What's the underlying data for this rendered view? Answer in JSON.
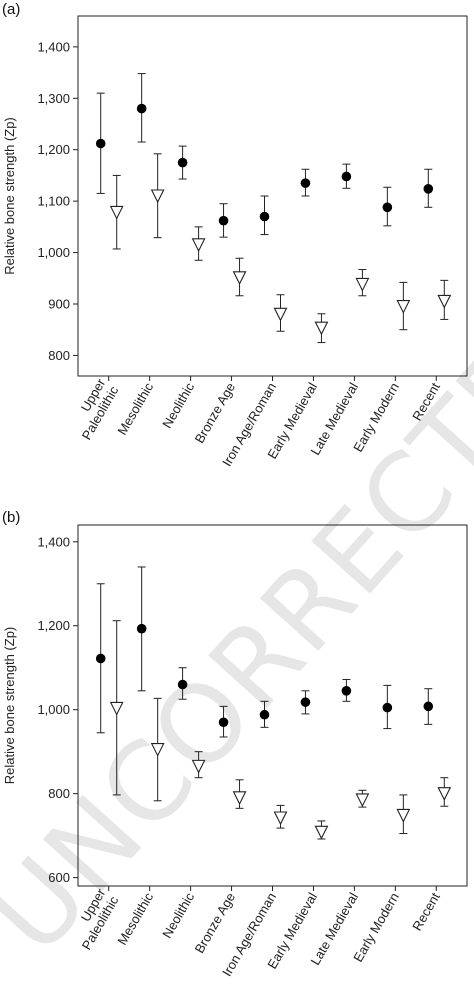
{
  "watermark": "UNCORRECTED",
  "chart_data": [
    {
      "type": "scatter",
      "panel_label": "(a)",
      "ylabel": "Relative bone strength (Zp)",
      "ylim": [
        760,
        1460
      ],
      "yticks": [
        800,
        900,
        1000,
        1100,
        1200,
        1300,
        1400
      ],
      "ytick_labels": [
        "800",
        "900",
        "1,000",
        "1,100",
        "1,200",
        "1,300",
        "1,400"
      ],
      "categories": [
        [
          "Upper",
          "Paleolithic"
        ],
        [
          "Mesolithic"
        ],
        [
          "Neolithic"
        ],
        [
          "Bronze Age"
        ],
        [
          "Iron Age/Roman"
        ],
        [
          "Early Medieval"
        ],
        [
          "Late Medieval"
        ],
        [
          "Early Modern"
        ],
        [
          "Recent"
        ]
      ],
      "series": [
        {
          "marker": "filled-circle",
          "values": [
            1212,
            1280,
            1175,
            1062,
            1070,
            1135,
            1148,
            1088,
            1124
          ],
          "lower": [
            1115,
            1215,
            1143,
            1030,
            1035,
            1110,
            1125,
            1052,
            1088
          ],
          "upper": [
            1310,
            1348,
            1207,
            1095,
            1110,
            1162,
            1172,
            1127,
            1162
          ]
        },
        {
          "marker": "open-triangle-down",
          "values": [
            1078,
            1110,
            1015,
            951,
            880,
            853,
            938,
            895,
            905
          ],
          "lower": [
            1007,
            1029,
            985,
            916,
            847,
            825,
            916,
            850,
            870
          ],
          "upper": [
            1150,
            1192,
            1050,
            989,
            918,
            881,
            967,
            942,
            946
          ]
        }
      ]
    },
    {
      "type": "scatter",
      "panel_label": "(b)",
      "ylabel": "Relative bone strength (Zp)",
      "ylim": [
        580,
        1440
      ],
      "yticks": [
        600,
        800,
        1000,
        1200,
        1400
      ],
      "ytick_labels": [
        "600",
        "800",
        "1,000",
        "1,200",
        "1,400"
      ],
      "categories": [
        [
          "Upper",
          "Paleolithic"
        ],
        [
          "Mesolithic"
        ],
        [
          "Neolithic"
        ],
        [
          "Bronze Age"
        ],
        [
          "Iron Age/Roman"
        ],
        [
          "Early Medieval"
        ],
        [
          "Late Medieval"
        ],
        [
          "Early Modern"
        ],
        [
          "Recent"
        ]
      ],
      "series": [
        {
          "marker": "filled-circle",
          "values": [
            1122,
            1193,
            1060,
            970,
            988,
            1018,
            1045,
            1005,
            1008
          ],
          "lower": [
            945,
            1045,
            1025,
            935,
            958,
            990,
            1020,
            955,
            965
          ],
          "upper": [
            1300,
            1340,
            1100,
            1008,
            1020,
            1045,
            1072,
            1058,
            1050
          ]
        },
        {
          "marker": "open-triangle-down",
          "values": [
            1003,
            905,
            865,
            790,
            742,
            708,
            785,
            748,
            800
          ],
          "lower": [
            797,
            783,
            838,
            765,
            718,
            692,
            768,
            705,
            770
          ],
          "upper": [
            1212,
            1027,
            900,
            833,
            772,
            735,
            808,
            797,
            838
          ]
        }
      ]
    }
  ]
}
